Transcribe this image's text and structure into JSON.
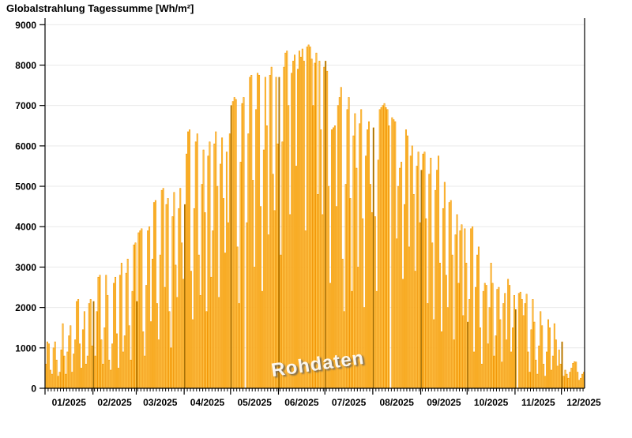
{
  "header": {
    "title": "Globalstrahlung Tagessumme [Wh/m²]"
  },
  "watermark": {
    "label": "Rohdaten"
  },
  "colors": {
    "bar_fill": "#FFC851",
    "bar_edge": "#F29400",
    "month_boundary_bar": "#8A5F00",
    "grid": "#E9E9E9",
    "axis": "#000000",
    "watermark_text": "#F5F5F5",
    "background": "#FFFFFF",
    "title_text": "#000000"
  },
  "chart_data": {
    "type": "bar",
    "title": "Globalstrahlung Tagessumme [Wh/m²]",
    "unit": "Wh/m²",
    "watermark": "Rohdaten",
    "ylabel": "",
    "xlabel": "",
    "ylim": [
      0,
      9000
    ],
    "y_ticks": [
      0,
      1000,
      2000,
      3000,
      4000,
      5000,
      6000,
      7000,
      8000,
      9000
    ],
    "grid": "horizontal-light-gray",
    "legend": "none",
    "x_axis_note": "one bar per day, Jan 1 2025 through mid Dec 2025; zero values are missing days",
    "x_tick_labels": [
      "01/2025",
      "02/2025",
      "03/2025",
      "04/2025",
      "05/2025",
      "06/2025",
      "07/2025",
      "08/2025",
      "09/2025",
      "10/2025",
      "11/2025",
      "12/2025"
    ],
    "series": [
      {
        "month": "01/2025",
        "values": [
          600,
          1150,
          1100,
          450,
          350,
          1000,
          1150,
          700,
          300,
          400,
          950,
          1600,
          800,
          350,
          900,
          1300,
          1550,
          400,
          850,
          1200,
          2150,
          2200,
          1100,
          500,
          1450,
          1900,
          600,
          800,
          2100,
          2200,
          1050
        ]
      },
      {
        "month": "02/2025",
        "values": [
          2150,
          800,
          1900,
          2750,
          2800,
          1200,
          600,
          1500,
          2800,
          2300,
          700,
          450,
          1100,
          2600,
          2750,
          1350,
          500,
          2800,
          3100,
          900,
          1300,
          2850,
          3200,
          1550,
          700,
          2400,
          3550,
          3600
        ]
      },
      {
        "month": "03/2025",
        "values": [
          2150,
          3850,
          3900,
          3950,
          1400,
          800,
          2550,
          3900,
          4000,
          1650,
          3200,
          4600,
          4650,
          2100,
          1200,
          3300,
          4900,
          4950,
          2500,
          4550,
          4700,
          1900,
          1000,
          4250,
          4850,
          3050,
          2250,
          4450,
          4950,
          3600,
          2700
        ]
      },
      {
        "month": "04/2025",
        "values": [
          4550,
          5800,
          6350,
          6400,
          2900,
          1700,
          4450,
          6100,
          6300,
          3300,
          2300,
          5050,
          5900,
          4350,
          1900,
          5750,
          6100,
          2750,
          3900,
          6050,
          6350,
          5000,
          2250,
          5550,
          6200,
          4700,
          3350,
          5850,
          4100,
          6300
        ]
      },
      {
        "month": "05/2025",
        "values": [
          7000,
          7100,
          7200,
          7150,
          3500,
          2100,
          5600,
          7050,
          7200,
          0,
          4100,
          6300,
          7700,
          7750,
          5150,
          3000,
          6900,
          7800,
          7750,
          4500,
          2400,
          5900,
          7700,
          6500,
          3800,
          7750,
          7950,
          5300,
          4400,
          7700,
          6050
        ]
      },
      {
        "month": "06/2025",
        "values": [
          7700,
          3300,
          6100,
          7950,
          8300,
          8350,
          7000,
          4300,
          7800,
          8100,
          8250,
          5500,
          7900,
          8350,
          8200,
          8400,
          8100,
          3900,
          8450,
          8500,
          8450,
          8150,
          7000,
          8050,
          8300,
          4800,
          8100,
          6400,
          4300,
          7950
        ]
      },
      {
        "month": "07/2025",
        "values": [
          8100,
          7850,
          5000,
          2600,
          6400,
          6450,
          6500,
          4500,
          7000,
          7200,
          7450,
          3200,
          1900,
          5050,
          6900,
          7200,
          4700,
          2400,
          6250,
          6800,
          5450,
          3000,
          6550,
          6900,
          4200,
          2000,
          5750,
          6400,
          6600,
          5050,
          4350
        ]
      },
      {
        "month": "08/2025",
        "values": [
          6450,
          4250,
          2400,
          5650,
          6900,
          6950,
          7000,
          7050,
          6950,
          6900,
          6500,
          0,
          6700,
          6650,
          6600,
          3700,
          5000,
          5450,
          5600,
          2700,
          4550,
          6400,
          6250,
          3500,
          5750,
          6000,
          4800,
          2900,
          5500,
          5850,
          4100
        ]
      },
      {
        "month": "09/2025",
        "values": [
          5400,
          5800,
          5850,
          4200,
          2100,
          5300,
          5700,
          3600,
          1700,
          4900,
          5400,
          5750,
          3100,
          1400,
          4450,
          5100,
          2800,
          2000,
          4600,
          4650,
          3300,
          1200,
          3800,
          4300,
          2600,
          3900,
          4050,
          1800,
          3950,
          3100
        ]
      },
      {
        "month": "10/2025",
        "values": [
          1640,
          2200,
          3950,
          4000,
          900,
          2500,
          3300,
          3500,
          1500,
          600,
          2400,
          2600,
          2550,
          1100,
          2000,
          3100,
          2600,
          800,
          1300,
          2450,
          2500,
          1700,
          650,
          2100,
          2350,
          1200,
          2700,
          2550,
          900,
          1500,
          2300
        ]
      },
      {
        "month": "11/2025",
        "values": [
          1950,
          0,
          2350,
          2380,
          2200,
          1800,
          2100,
          2330,
          900,
          400,
          1450,
          2200,
          1640,
          700,
          350,
          1050,
          1900,
          1550,
          600,
          300,
          900,
          1700,
          1500,
          450,
          800,
          1600,
          1200,
          550,
          950,
          600
        ]
      },
      {
        "month": "12/2025",
        "values": [
          1150,
          300,
          450,
          350,
          250,
          400,
          500,
          620,
          660,
          650,
          400,
          200,
          250,
          350,
          400
        ]
      }
    ]
  }
}
